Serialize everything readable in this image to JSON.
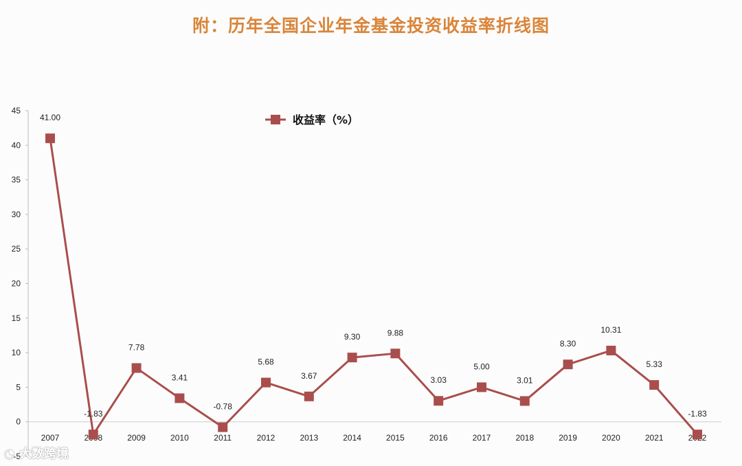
{
  "title": "附：历年全国企业年金基金投资收益率折线图",
  "watermark": "大数跨境",
  "colors": {
    "series": "#a94e4c",
    "title": "#d9853a"
  },
  "chart_data": {
    "type": "line",
    "categories": [
      "2007",
      "2008",
      "2009",
      "2010",
      "2011",
      "2012",
      "2013",
      "2014",
      "2015",
      "2016",
      "2017",
      "2018",
      "2019",
      "2020",
      "2021",
      "2022"
    ],
    "series": [
      {
        "name": "收益率（%）",
        "values": [
          41.0,
          -1.83,
          7.78,
          3.41,
          -0.78,
          5.68,
          3.67,
          9.3,
          9.88,
          3.03,
          5.0,
          3.01,
          8.3,
          10.31,
          5.33,
          -1.83
        ],
        "labels": [
          "41.00",
          "-1.83",
          "7.78",
          "3.41",
          "-0.78",
          "5.68",
          "3.67",
          "9.30",
          "9.88",
          "3.03",
          "5.00",
          "3.01",
          "8.30",
          "10.31",
          "5.33",
          "-1.83"
        ]
      }
    ],
    "yticks": [
      "-5",
      "0",
      "5",
      "10",
      "15",
      "20",
      "25",
      "30",
      "35",
      "40",
      "45"
    ],
    "ylim": [
      -5,
      45
    ],
    "legend": "top-center",
    "grid": false
  }
}
